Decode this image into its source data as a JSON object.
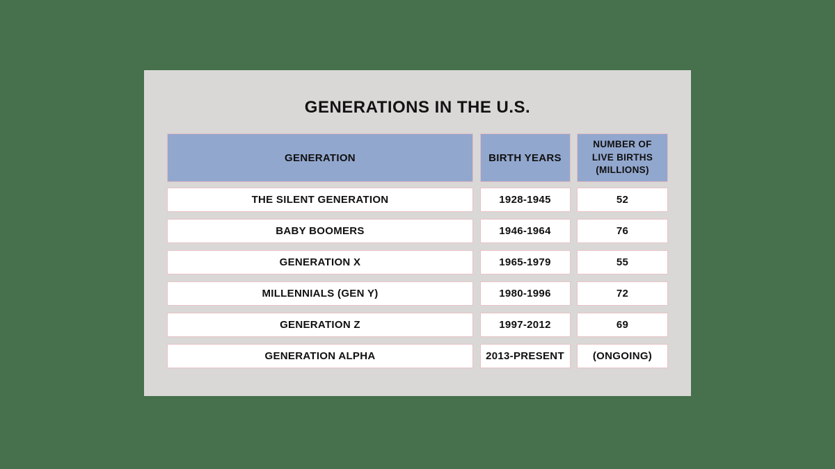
{
  "title": "GENERATIONS IN THE U.S.",
  "colors": {
    "page_background": "#47704d",
    "card_background": "#d9d8d6",
    "header_cell_background": "#92a7ce",
    "cell_border": "#e9c2c7",
    "cell_background": "#ffffff",
    "text": "#101010"
  },
  "table": {
    "headers": [
      "GENERATION",
      "BIRTH YEARS",
      "NUMBER OF LIVE BIRTHS (MILLIONS)"
    ],
    "rows": [
      {
        "generation": "THE SILENT GENERATION",
        "birth_years": "1928-1945",
        "live_births": "52"
      },
      {
        "generation": "BABY BOOMERS",
        "birth_years": "1946-1964",
        "live_births": "76"
      },
      {
        "generation": "GENERATION X",
        "birth_years": "1965-1979",
        "live_births": "55"
      },
      {
        "generation": "MILLENNIALS (GEN Y)",
        "birth_years": "1980-1996",
        "live_births": "72"
      },
      {
        "generation": "GENERATION Z",
        "birth_years": "1997-2012",
        "live_births": "69"
      },
      {
        "generation": "GENERATION ALPHA",
        "birth_years": "2013-PRESENT",
        "live_births": "(ONGOING)"
      }
    ]
  },
  "chart_data": {
    "type": "table",
    "title": "GENERATIONS IN THE U.S.",
    "columns": [
      "GENERATION",
      "BIRTH YEARS",
      "NUMBER OF LIVE BIRTHS (MILLIONS)"
    ],
    "rows": [
      [
        "THE SILENT GENERATION",
        "1928-1945",
        "52"
      ],
      [
        "BABY BOOMERS",
        "1946-1964",
        "76"
      ],
      [
        "GENERATION X",
        "1965-1979",
        "55"
      ],
      [
        "MILLENNIALS (GEN Y)",
        "1980-1996",
        "72"
      ],
      [
        "GENERATION Z",
        "1997-2012",
        "69"
      ],
      [
        "GENERATION ALPHA",
        "2013-PRESENT",
        "(ONGOING)"
      ]
    ]
  }
}
